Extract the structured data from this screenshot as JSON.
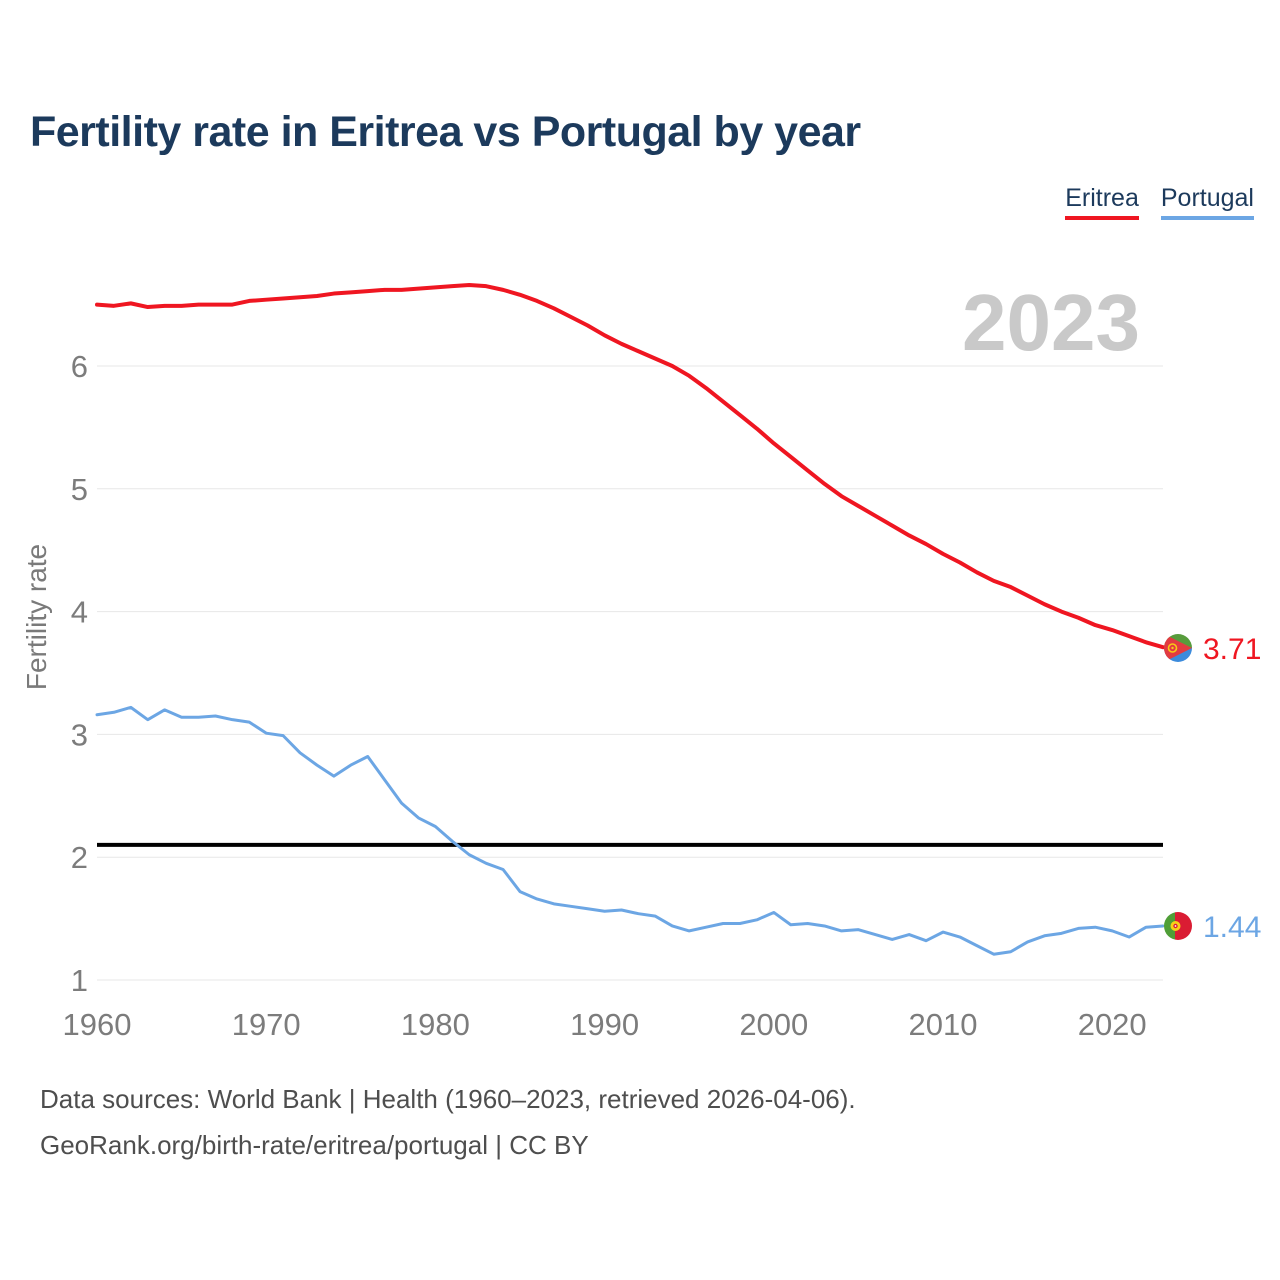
{
  "header": {
    "title": "Fertility rate in Eritrea vs Portugal by year"
  },
  "legend": [
    {
      "label": "Eritrea",
      "color": "#ef1621"
    },
    {
      "label": "Portugal",
      "color": "#6ca6e4"
    }
  ],
  "watermark": "2023",
  "footer": {
    "line1": "Data sources: World Bank | Health (1960–2023, retrieved 2026-04-06).",
    "line2": "GeoRank.org/birth-rate/eritrea/portugal | CC BY"
  },
  "chart_data": {
    "type": "line",
    "title": "Fertility rate in Eritrea vs Portugal by year",
    "xlabel": "",
    "ylabel": "Fertility rate",
    "x_ticks": [
      1960,
      1970,
      1980,
      1990,
      2000,
      2010,
      2020
    ],
    "y_ticks": [
      1,
      2,
      3,
      4,
      5,
      6
    ],
    "ylim": [
      1,
      7
    ],
    "grid": "horizontal",
    "legend_position": "top-right",
    "reference_line": {
      "value": 2.1,
      "color": "#000000"
    },
    "end_labels": [
      {
        "series": "Eritrea",
        "value": "3.71"
      },
      {
        "series": "Portugal",
        "value": "1.44"
      }
    ],
    "x": [
      1960,
      1961,
      1962,
      1963,
      1964,
      1965,
      1966,
      1967,
      1968,
      1969,
      1970,
      1971,
      1972,
      1973,
      1974,
      1975,
      1976,
      1977,
      1978,
      1979,
      1980,
      1981,
      1982,
      1983,
      1984,
      1985,
      1986,
      1987,
      1988,
      1989,
      1990,
      1991,
      1992,
      1993,
      1994,
      1995,
      1996,
      1997,
      1998,
      1999,
      2000,
      2001,
      2002,
      2003,
      2004,
      2005,
      2006,
      2007,
      2008,
      2009,
      2010,
      2011,
      2012,
      2013,
      2014,
      2015,
      2016,
      2017,
      2018,
      2019,
      2020,
      2021,
      2022,
      2023
    ],
    "series": [
      {
        "name": "Eritrea",
        "color": "#ef1621",
        "values": [
          6.5,
          6.49,
          6.51,
          6.48,
          6.49,
          6.49,
          6.5,
          6.5,
          6.5,
          6.53,
          6.54,
          6.55,
          6.56,
          6.57,
          6.59,
          6.6,
          6.61,
          6.62,
          6.62,
          6.63,
          6.64,
          6.65,
          6.66,
          6.65,
          6.62,
          6.58,
          6.53,
          6.47,
          6.4,
          6.33,
          6.25,
          6.18,
          6.12,
          6.06,
          6.0,
          5.92,
          5.82,
          5.71,
          5.6,
          5.49,
          5.37,
          5.26,
          5.15,
          5.04,
          4.94,
          4.86,
          4.78,
          4.7,
          4.62,
          4.55,
          4.47,
          4.4,
          4.32,
          4.25,
          4.2,
          4.13,
          4.06,
          4.0,
          3.95,
          3.89,
          3.85,
          3.8,
          3.75,
          3.71
        ]
      },
      {
        "name": "Portugal",
        "color": "#6ca6e4",
        "values": [
          3.16,
          3.18,
          3.22,
          3.12,
          3.2,
          3.14,
          3.14,
          3.15,
          3.12,
          3.1,
          3.01,
          2.99,
          2.85,
          2.75,
          2.66,
          2.75,
          2.82,
          2.63,
          2.44,
          2.32,
          2.25,
          2.13,
          2.02,
          1.95,
          1.9,
          1.72,
          1.66,
          1.62,
          1.6,
          1.58,
          1.56,
          1.57,
          1.54,
          1.52,
          1.44,
          1.4,
          1.43,
          1.46,
          1.46,
          1.49,
          1.55,
          1.45,
          1.46,
          1.44,
          1.4,
          1.41,
          1.37,
          1.33,
          1.37,
          1.32,
          1.39,
          1.35,
          1.28,
          1.21,
          1.23,
          1.31,
          1.36,
          1.38,
          1.42,
          1.43,
          1.4,
          1.35,
          1.43,
          1.44
        ]
      }
    ]
  }
}
